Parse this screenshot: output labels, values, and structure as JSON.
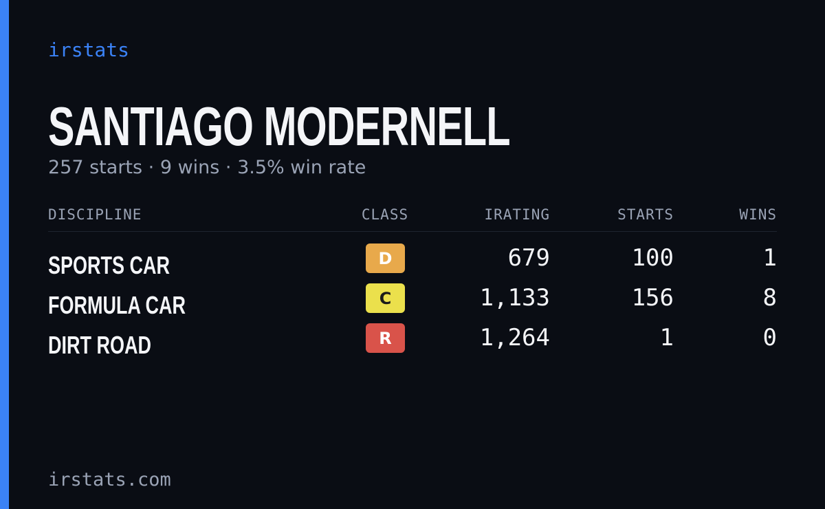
{
  "brand": "irstats",
  "header": {
    "title": "SANTIAGO MODERNELL",
    "subtitle": "257 starts · 9 wins · 3.5% win rate"
  },
  "table": {
    "columns": [
      "DISCIPLINE",
      "CLASS",
      "IRATING",
      "STARTS",
      "WINS"
    ],
    "rows": [
      [
        "SPORTS CAR",
        "D",
        "679",
        "100",
        "1"
      ],
      [
        "FORMULA CAR",
        "C",
        "1,133",
        "156",
        "8"
      ],
      [
        "DIRT ROAD",
        "R",
        "1,264",
        "1",
        "0"
      ]
    ],
    "class_colors": [
      "#e8a94b",
      "#ebe04c",
      "#d9534a"
    ],
    "class_text_colors": [
      "#ffffff",
      "#1a1a1a",
      "#ffffff"
    ]
  },
  "footer": "irstats.com"
}
